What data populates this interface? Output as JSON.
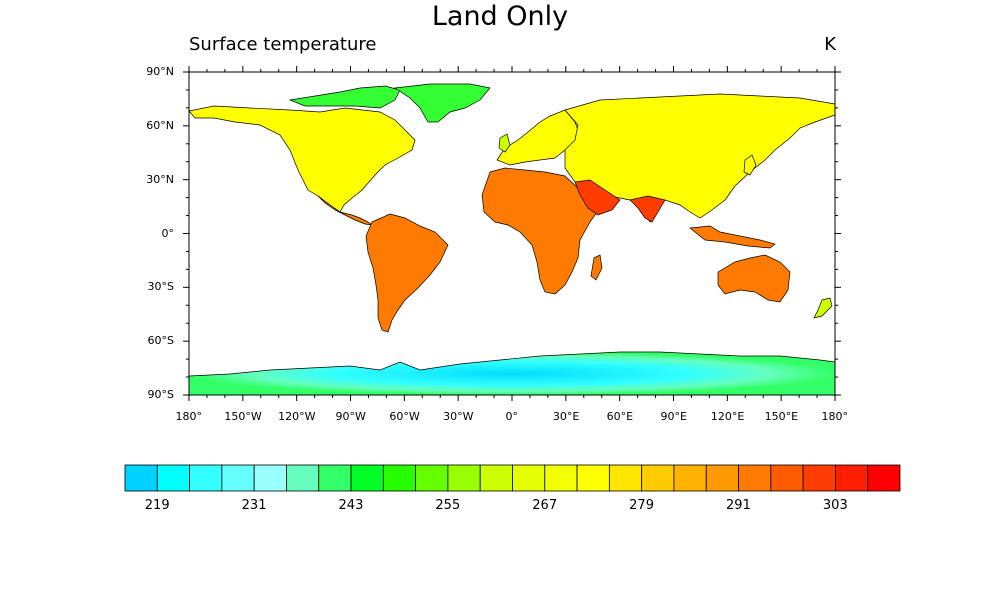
{
  "title": "Land Only",
  "left_string": "Surface temperature",
  "right_string": "K",
  "lat_labels": [
    "90°N",
    "60°N",
    "30°N",
    "0°",
    "30°S",
    "60°S",
    "90°S"
  ],
  "lon_labels": [
    "180°",
    "150°W",
    "120°W",
    "90°W",
    "60°W",
    "30°W",
    "0°",
    "30°E",
    "60°E",
    "90°E",
    "120°E",
    "150°E",
    "180°"
  ],
  "colorbar": {
    "labels": [
      "219",
      "231",
      "243",
      "255",
      "267",
      "279",
      "291",
      "303"
    ],
    "colors": [
      "#00d2ff",
      "#00ffff",
      "#33ffff",
      "#66ffff",
      "#99ffff",
      "#66ffbf",
      "#33ff66",
      "#00ff26",
      "#26ff00",
      "#66ff00",
      "#99ff00",
      "#ccff00",
      "#e6ff00",
      "#f2ff00",
      "#ffff00",
      "#ffe600",
      "#ffcc00",
      "#ffb300",
      "#ff9900",
      "#ff7a00",
      "#ff5c00",
      "#ff3d00",
      "#ff1f00",
      "#ff0000"
    ]
  },
  "map": {
    "projection": "cylindrical-equidistant",
    "lon_range": [
      -180,
      180
    ],
    "lat_range": [
      -90,
      90
    ],
    "land_colors": {
      "polar": "#00e6ff",
      "cold": "#33ff33",
      "cool": "#ccff00",
      "mild": "#ffff00",
      "warm": "#ffcc00",
      "hot": "#ff7a00",
      "hottest": "#ff3d00"
    }
  }
}
